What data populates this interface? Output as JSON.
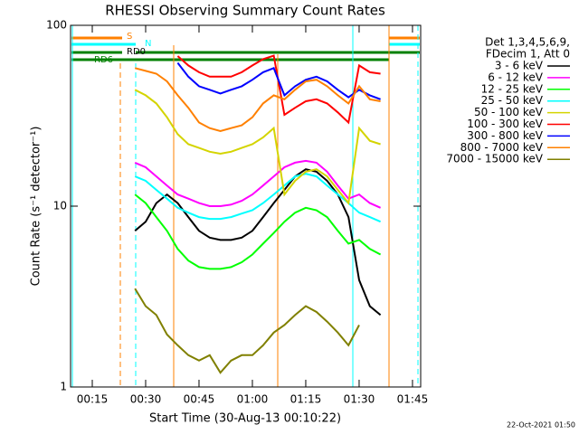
{
  "chart_data": {
    "type": "line",
    "title": "RHESSI Observing Summary Count Rates",
    "x_label": "Start Time (30-Aug-13 00:10:22)",
    "y_label": "Count Rate (s⁻¹ detector⁻¹)",
    "footer": "22-Oct-2021 01:50",
    "legend_header": [
      "Det 1,3,4,5,6,9,",
      "FDecim 1, Att 0"
    ],
    "log_y": true,
    "xlim": [
      8.9,
      107.3
    ],
    "xticks": [
      {
        "value": 15,
        "label": "00:15"
      },
      {
        "value": 30,
        "label": "00:30"
      },
      {
        "value": 45,
        "label": "00:45"
      },
      {
        "value": 60,
        "label": "01:00"
      },
      {
        "value": 75,
        "label": "01:15"
      },
      {
        "value": 90,
        "label": "01:30"
      },
      {
        "value": 105,
        "label": "01:45"
      }
    ],
    "ylim": [
      1,
      100
    ],
    "yticks": [
      1,
      10,
      100
    ],
    "annotations": [
      {
        "text": "S",
        "color": "#ff8000"
      },
      {
        "text": "N",
        "color": "#00ffff"
      },
      {
        "text": "RD0",
        "color": "#000000"
      },
      {
        "text": "RD6",
        "color": "#008000"
      }
    ],
    "x": [
      27,
      30,
      33,
      36,
      39,
      42,
      45,
      48,
      51,
      54,
      57,
      60,
      63,
      66,
      69,
      72,
      75,
      78,
      81,
      84,
      87,
      90,
      93,
      96
    ],
    "series": [
      {
        "name": "3 - 6 keV",
        "color": "#000000",
        "values": [
          7.3,
          8.2,
          10.4,
          11.6,
          10.4,
          8.7,
          7.3,
          6.7,
          6.5,
          6.5,
          6.7,
          7.3,
          8.7,
          10.4,
          12.3,
          14.6,
          16,
          15.5,
          13.8,
          11.6,
          8.7,
          3.9,
          2.8,
          2.5
        ]
      },
      {
        "name": "6 - 12 keV",
        "color": "#ff00ff",
        "values": [
          17.4,
          16.4,
          14.6,
          13,
          11.6,
          11,
          10.4,
          10,
          10,
          10.2,
          10.7,
          11.6,
          13,
          14.6,
          16.4,
          17.4,
          17.8,
          17.4,
          15.5,
          13,
          11,
          11.6,
          10.4,
          9.8
        ]
      },
      {
        "name": "12 - 25 keV",
        "color": "#00ff00",
        "values": [
          11.6,
          10.4,
          8.7,
          7.3,
          5.8,
          5,
          4.6,
          4.5,
          4.5,
          4.6,
          4.9,
          5.4,
          6.2,
          7.1,
          8.2,
          9.2,
          9.8,
          9.5,
          8.7,
          7.3,
          6.2,
          6.5,
          5.8,
          5.4
        ]
      },
      {
        "name": "25 - 50 keV",
        "color": "#00ffff",
        "values": [
          14.6,
          13.8,
          12.3,
          11,
          9.8,
          9.2,
          8.7,
          8.5,
          8.5,
          8.7,
          9.1,
          9.5,
          10.4,
          11.6,
          13,
          14.6,
          15.1,
          14.6,
          13,
          11.6,
          10.4,
          9.2,
          8.7,
          8.2
        ]
      },
      {
        "name": "50 - 100 keV",
        "color": "#d4d400",
        "values": [
          44,
          41,
          37,
          31,
          25,
          22,
          21,
          20,
          19.5,
          20,
          21,
          22,
          24,
          27,
          11.6,
          13.8,
          15.5,
          16,
          14.6,
          12.3,
          10.4,
          27,
          23,
          22
        ]
      },
      {
        "name": "100 - 300 keV",
        "color": "#ff0000",
        "values": [
          null,
          null,
          null,
          null,
          67.6,
          60,
          55,
          52,
          52,
          52,
          55,
          60,
          65,
          68,
          32,
          35,
          38,
          39,
          37,
          33,
          29,
          60,
          55,
          54
        ]
      },
      {
        "name": "300 - 800 keV",
        "color": "#0000ff",
        "values": [
          null,
          null,
          null,
          null,
          62,
          52,
          46,
          44,
          42,
          44,
          46,
          50,
          55,
          58,
          41,
          46,
          50,
          52,
          49,
          44,
          40,
          44,
          41,
          39
        ]
      },
      {
        "name": "800 - 7000 keV",
        "color": "#ff8000",
        "values": [
          58,
          56,
          54,
          49,
          41,
          35,
          29,
          27,
          26,
          27,
          28,
          31,
          37,
          41,
          39,
          44,
          49,
          50,
          46,
          41,
          37,
          46,
          39,
          38
        ]
      },
      {
        "name": "7000 - 15000 keV",
        "color": "#808000",
        "values": [
          3.5,
          2.8,
          2.5,
          1.95,
          1.7,
          1.5,
          1.4,
          1.5,
          1.2,
          1.4,
          1.5,
          1.5,
          1.7,
          2,
          2.2,
          2.5,
          2.8,
          2.6,
          2.3,
          2,
          1.7,
          2.2,
          null,
          null
        ]
      }
    ]
  }
}
